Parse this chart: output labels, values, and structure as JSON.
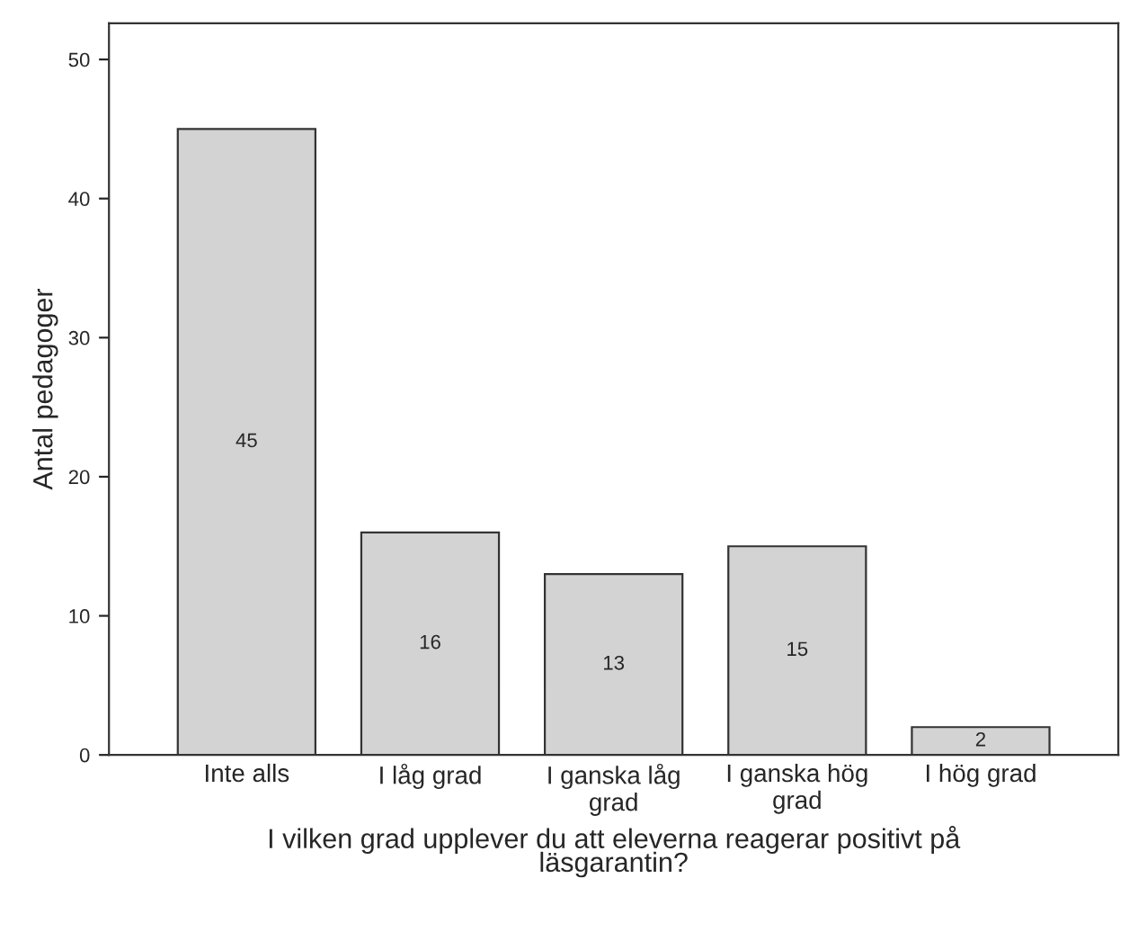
{
  "chart_data": {
    "type": "bar",
    "xlabel": "I vilken grad upplever du att eleverna reagerar positivt på\nläsgarantin?",
    "ylabel": "Antal pedagoger",
    "categories": [
      "Inte alls",
      "I låg grad",
      "I ganska låg\ngrad",
      "I ganska hög\ngrad",
      "I hög grad"
    ],
    "values": [
      45,
      16,
      13,
      15,
      2
    ],
    "color": "#d3d3d3",
    "ylim": [
      0,
      52.6
    ],
    "yticks": [
      0,
      10,
      20,
      30,
      40,
      50
    ],
    "data_labels": true,
    "grid": false
  }
}
